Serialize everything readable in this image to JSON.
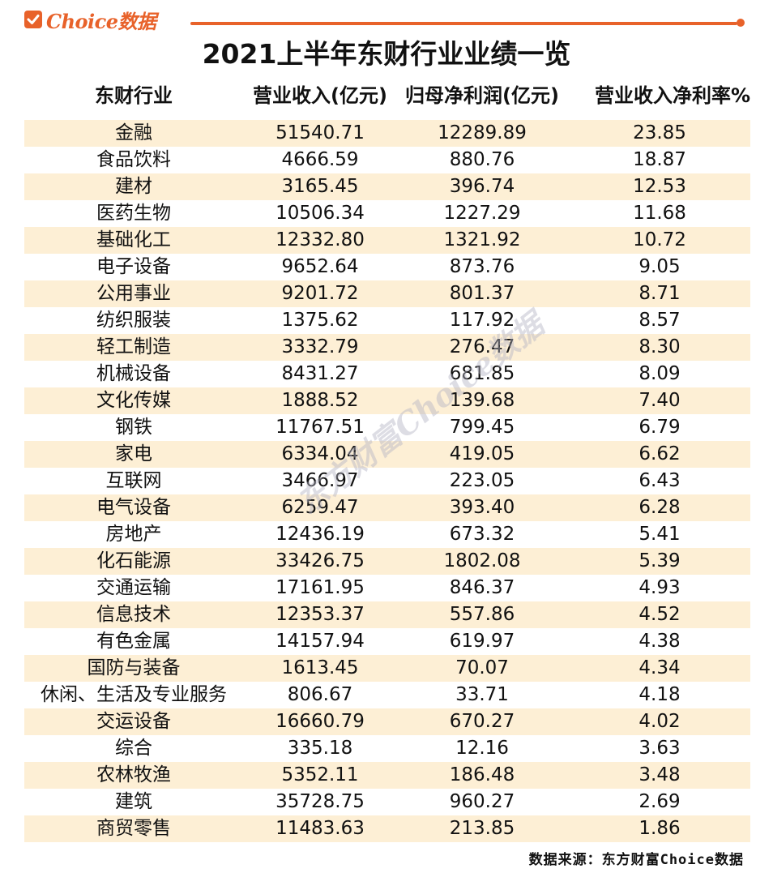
{
  "brand": {
    "logo_text": "Choice数据",
    "accent_color": "#e8622a",
    "stripe_color": "#fdefd5"
  },
  "watermark": "东方财富Choice数据",
  "source_note": "数据来源：东方财富Choice数据",
  "chart_data": {
    "type": "table",
    "title": "2021上半年东财行业业绩一览",
    "columns": [
      "东财行业",
      "营业收入(亿元)",
      "归母净利润(亿元)",
      "营业收入净利率%"
    ],
    "rows": [
      [
        "金融",
        "51540.71",
        "12289.89",
        "23.85"
      ],
      [
        "食品饮料",
        "4666.59",
        "880.76",
        "18.87"
      ],
      [
        "建材",
        "3165.45",
        "396.74",
        "12.53"
      ],
      [
        "医药生物",
        "10506.34",
        "1227.29",
        "11.68"
      ],
      [
        "基础化工",
        "12332.80",
        "1321.92",
        "10.72"
      ],
      [
        "电子设备",
        "9652.64",
        "873.76",
        "9.05"
      ],
      [
        "公用事业",
        "9201.72",
        "801.37",
        "8.71"
      ],
      [
        "纺织服装",
        "1375.62",
        "117.92",
        "8.57"
      ],
      [
        "轻工制造",
        "3332.79",
        "276.47",
        "8.30"
      ],
      [
        "机械设备",
        "8431.27",
        "681.85",
        "8.09"
      ],
      [
        "文化传媒",
        "1888.52",
        "139.68",
        "7.40"
      ],
      [
        "钢铁",
        "11767.51",
        "799.45",
        "6.79"
      ],
      [
        "家电",
        "6334.04",
        "419.05",
        "6.62"
      ],
      [
        "互联网",
        "3466.97",
        "223.05",
        "6.43"
      ],
      [
        "电气设备",
        "6259.47",
        "393.40",
        "6.28"
      ],
      [
        "房地产",
        "12436.19",
        "673.32",
        "5.41"
      ],
      [
        "化石能源",
        "33426.75",
        "1802.08",
        "5.39"
      ],
      [
        "交通运输",
        "17161.95",
        "846.37",
        "4.93"
      ],
      [
        "信息技术",
        "12353.37",
        "557.86",
        "4.52"
      ],
      [
        "有色金属",
        "14157.94",
        "619.97",
        "4.38"
      ],
      [
        "国防与装备",
        "1613.45",
        "70.07",
        "4.34"
      ],
      [
        "休闲、生活及专业服务",
        "806.67",
        "33.71",
        "4.18"
      ],
      [
        "交运设备",
        "16660.79",
        "670.27",
        "4.02"
      ],
      [
        "综合",
        "335.18",
        "12.16",
        "3.63"
      ],
      [
        "农林牧渔",
        "5352.11",
        "186.48",
        "3.48"
      ],
      [
        "建筑",
        "35728.75",
        "960.27",
        "2.69"
      ],
      [
        "商贸零售",
        "11483.63",
        "213.85",
        "1.86"
      ]
    ]
  }
}
